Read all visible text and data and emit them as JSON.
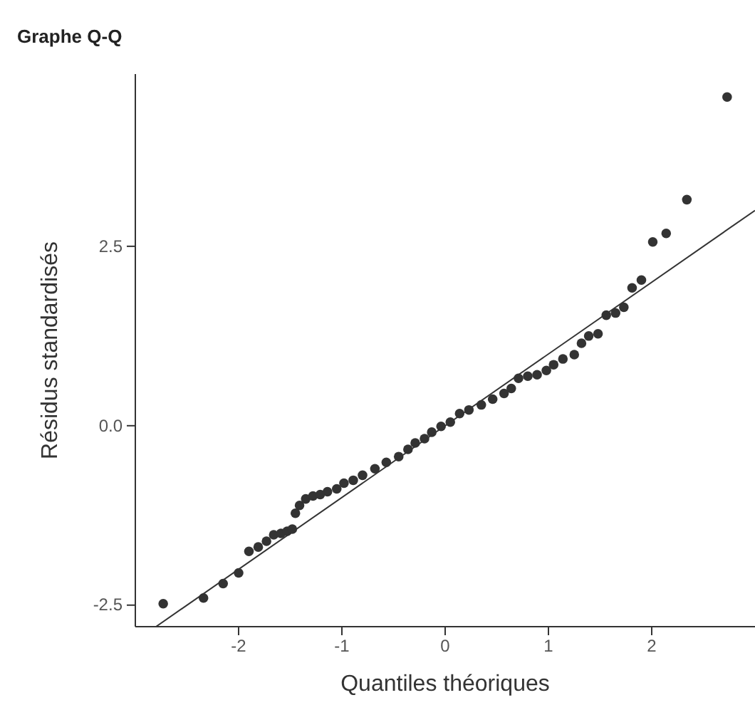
{
  "chart_data": {
    "type": "scatter",
    "title": "Graphe Q-Q",
    "xlabel": "Quantiles théoriques",
    "ylabel": "Résidus standardisés",
    "xlim": [
      -3,
      3
    ],
    "ylim": [
      -2.8,
      4.9
    ],
    "xticks": [
      -2,
      -1,
      0,
      1,
      2
    ],
    "yticks": [
      {
        "value": -2.5,
        "label": "-2.5"
      },
      {
        "value": 0,
        "label": "0.0"
      },
      {
        "value": 2.5,
        "label": "2.5"
      }
    ],
    "grid": false,
    "marker": "circle",
    "series": [
      {
        "color": "#333333",
        "x": [
          -2.73,
          -2.34,
          -2.15,
          -2.0,
          -1.9,
          -1.81,
          -1.73,
          -1.66,
          -1.59,
          -1.53,
          -1.48,
          -1.45,
          -1.41,
          -1.35,
          -1.28,
          -1.21,
          -1.14,
          -1.05,
          -0.98,
          -0.89,
          -0.8,
          -0.68,
          -0.57,
          -0.45,
          -0.36,
          -0.29,
          -0.2,
          -0.13,
          -0.04,
          0.05,
          0.14,
          0.23,
          0.35,
          0.46,
          0.57,
          0.64,
          0.71,
          0.8,
          0.89,
          0.98,
          1.05,
          1.14,
          1.25,
          1.32,
          1.39,
          1.48,
          1.56,
          1.65,
          1.73,
          1.81,
          1.9,
          2.01,
          2.14,
          2.34,
          2.73
        ],
        "values": [
          -2.48,
          -2.4,
          -2.2,
          -2.05,
          -1.75,
          -1.69,
          -1.61,
          -1.52,
          -1.5,
          -1.47,
          -1.44,
          -1.22,
          -1.11,
          -1.02,
          -0.98,
          -0.96,
          -0.92,
          -0.88,
          -0.8,
          -0.76,
          -0.69,
          -0.6,
          -0.51,
          -0.43,
          -0.33,
          -0.24,
          -0.18,
          -0.09,
          -0.01,
          0.05,
          0.17,
          0.22,
          0.29,
          0.37,
          0.45,
          0.52,
          0.66,
          0.69,
          0.71,
          0.77,
          0.85,
          0.93,
          0.99,
          1.15,
          1.25,
          1.28,
          1.54,
          1.57,
          1.65,
          1.92,
          2.03,
          2.56,
          2.68,
          3.15,
          4.58
        ]
      },
      {
        "type": "line",
        "color": "#333333",
        "marker": "none",
        "x": [
          -2.8,
          3.0
        ],
        "values": [
          -2.8,
          3.0
        ]
      }
    ]
  }
}
